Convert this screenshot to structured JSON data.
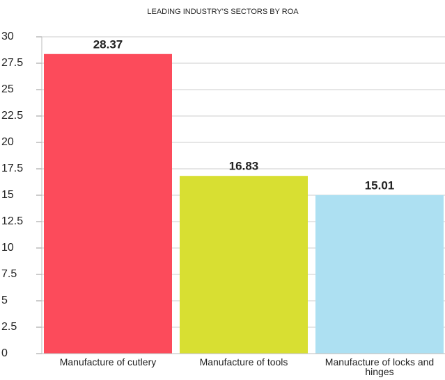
{
  "chart_data": {
    "type": "bar",
    "title": "LEADING INDUSTRY'S SECTORS BY ROA",
    "categories": [
      "Manufacture of cutlery",
      "Manufacture of tools",
      "Manufacture of locks and hinges"
    ],
    "values": [
      28.37,
      16.83,
      15.01
    ],
    "colors": [
      "#fc4b5b",
      "#d8df32",
      "#ade0f2"
    ],
    "ylim": [
      0,
      30
    ],
    "yticks": [
      0,
      2.5,
      5,
      7.5,
      10,
      12.5,
      15,
      17.5,
      20,
      22.5,
      25,
      27.5,
      30
    ],
    "grid": true
  }
}
